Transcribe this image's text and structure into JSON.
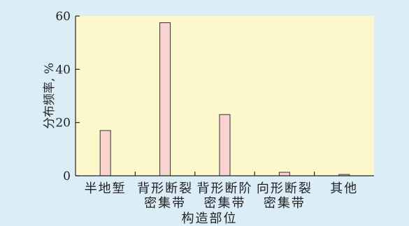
{
  "chart_data": {
    "type": "bar",
    "categories": [
      [
        "半地堑"
      ],
      [
        "背形断裂",
        "密集带"
      ],
      [
        "背形断阶",
        "密集带"
      ],
      [
        "向形断裂",
        "密集带"
      ],
      [
        "其他"
      ]
    ],
    "values": [
      17,
      57.5,
      23,
      1.3,
      0.5
    ],
    "xlabel": "构造部位",
    "ylabel": "分布频率, %",
    "ylim": [
      0,
      60
    ],
    "yticks": [
      0,
      20,
      40,
      60
    ],
    "grid": false,
    "colors": {
      "background": "#dbeef8",
      "plot_area": "#fdf8cc",
      "bar_fill": "#f9d3d0",
      "bar_stroke": "#333333",
      "axis": "#222222"
    }
  }
}
